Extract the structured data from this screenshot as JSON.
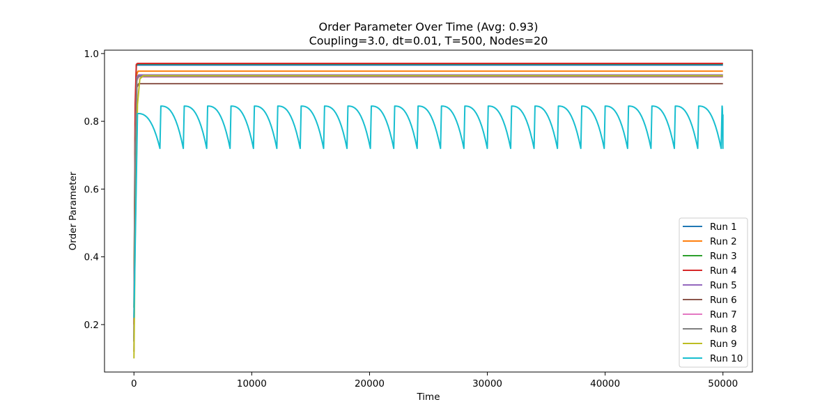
{
  "chart_data": {
    "type": "line",
    "title": "Order Parameter Over Time (Avg: 0.93)",
    "subtitle": "Coupling=3.0, dt=0.01, T=500, Nodes=20",
    "xlabel": "Time",
    "ylabel": "Order Parameter",
    "xlim": [
      -2500,
      52500
    ],
    "ylim": [
      0.06,
      1.01
    ],
    "xticks": [
      0,
      10000,
      20000,
      30000,
      40000,
      50000
    ],
    "yticks": [
      0.2,
      0.4,
      0.6,
      0.8,
      1.0
    ],
    "xtick_labels": [
      "0",
      "10000",
      "20000",
      "30000",
      "40000",
      "50000"
    ],
    "ytick_labels": [
      "0.2",
      "0.4",
      "0.6",
      "0.8",
      "1.0"
    ],
    "grid": false,
    "legend_position": "lower-right",
    "series": [
      {
        "name": "Run 1",
        "color": "#1f77b4",
        "x": [
          0,
          100,
          200,
          300,
          50000
        ],
        "y": [
          0.15,
          0.75,
          0.965,
          0.966,
          0.966
        ]
      },
      {
        "name": "Run 2",
        "color": "#ff7f0e",
        "x": [
          0,
          100,
          250,
          350,
          50000
        ],
        "y": [
          0.2,
          0.7,
          0.94,
          0.948,
          0.948
        ]
      },
      {
        "name": "Run 3",
        "color": "#2ca02c",
        "x": [
          0,
          100,
          200,
          300,
          50000
        ],
        "y": [
          0.25,
          0.8,
          0.965,
          0.97,
          0.97
        ]
      },
      {
        "name": "Run 4",
        "color": "#d62728",
        "x": [
          0,
          100,
          200,
          300,
          50000
        ],
        "y": [
          0.2,
          0.85,
          0.968,
          0.971,
          0.971
        ]
      },
      {
        "name": "Run 5",
        "color": "#9467bd",
        "x": [
          0,
          100,
          250,
          400,
          50000
        ],
        "y": [
          0.15,
          0.7,
          0.93,
          0.937,
          0.937
        ]
      },
      {
        "name": "Run 6",
        "color": "#8c564b",
        "x": [
          0,
          100,
          250,
          400,
          50000
        ],
        "y": [
          0.12,
          0.65,
          0.9,
          0.911,
          0.911
        ]
      },
      {
        "name": "Run 7",
        "color": "#e377c2",
        "x": [
          0,
          100,
          250,
          400,
          50000
        ],
        "y": [
          0.18,
          0.7,
          0.92,
          0.931,
          0.931
        ]
      },
      {
        "name": "Run 8",
        "color": "#7f7f7f",
        "x": [
          0,
          100,
          250,
          400,
          50000
        ],
        "y": [
          0.16,
          0.7,
          0.925,
          0.933,
          0.933
        ]
      },
      {
        "name": "Run 9",
        "color": "#bcbd22",
        "x": [
          0,
          100,
          300,
          500,
          800,
          50000
        ],
        "y": [
          0.1,
          0.45,
          0.85,
          0.925,
          0.935,
          0.935
        ]
      },
      {
        "name": "Run 10",
        "color": "#17becf",
        "oscillating": true,
        "x_start": 0,
        "x_end": 50000,
        "y_start": 0.22,
        "period": 1985,
        "peak": 0.845,
        "trough": 0.72,
        "first_peak_x": 300,
        "first_peak": 0.823
      }
    ]
  }
}
